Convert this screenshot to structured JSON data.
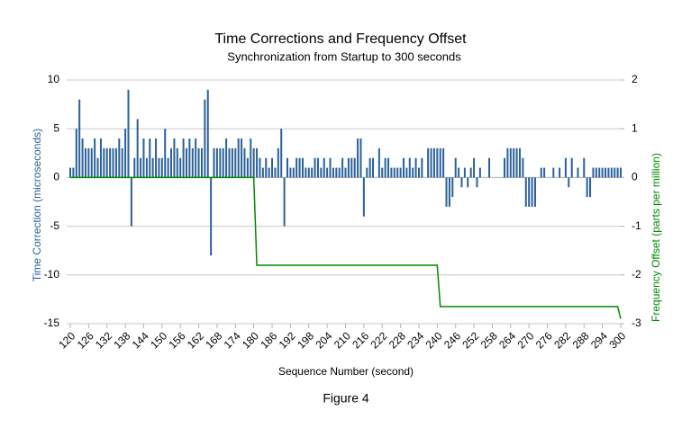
{
  "chart_data": {
    "type": "bar",
    "title": "Time Corrections and Frequency Offset",
    "subtitle": "Synchronization from Startup to 300 seconds",
    "x_label": "Sequence Number (second)",
    "y_label": "Time Correction (microseconds)",
    "y2_label": "Frequency Offset (parts per million)",
    "caption": "Figure 4",
    "x": [
      120,
      121,
      122,
      123,
      124,
      125,
      126,
      127,
      128,
      129,
      130,
      131,
      132,
      133,
      134,
      135,
      136,
      137,
      138,
      139,
      140,
      141,
      142,
      143,
      144,
      145,
      146,
      147,
      148,
      149,
      150,
      151,
      152,
      153,
      154,
      155,
      156,
      157,
      158,
      159,
      160,
      161,
      162,
      163,
      164,
      165,
      166,
      167,
      168,
      169,
      170,
      171,
      172,
      173,
      174,
      175,
      176,
      177,
      178,
      179,
      180,
      181,
      182,
      183,
      184,
      185,
      186,
      187,
      188,
      189,
      190,
      191,
      192,
      193,
      194,
      195,
      196,
      197,
      198,
      199,
      200,
      201,
      202,
      203,
      204,
      205,
      206,
      207,
      208,
      209,
      210,
      211,
      212,
      213,
      214,
      215,
      216,
      217,
      218,
      219,
      220,
      221,
      222,
      223,
      224,
      225,
      226,
      227,
      228,
      229,
      230,
      231,
      232,
      233,
      234,
      235,
      236,
      237,
      238,
      239,
      240,
      241,
      242,
      243,
      244,
      245,
      246,
      247,
      248,
      249,
      250,
      251,
      252,
      253,
      254,
      255,
      256,
      257,
      258,
      259,
      260,
      261,
      262,
      263,
      264,
      265,
      266,
      267,
      268,
      269,
      270,
      271,
      272,
      273,
      274,
      275,
      276,
      277,
      278,
      279,
      280,
      281,
      282,
      283,
      284,
      285,
      286,
      287,
      288,
      289,
      290,
      291,
      292,
      293,
      294,
      295,
      296,
      297,
      298,
      299,
      300
    ],
    "values": [
      1,
      1,
      5,
      8,
      4,
      3,
      3,
      3,
      4,
      2,
      4,
      3,
      3,
      3,
      3,
      3,
      4,
      3,
      5,
      9,
      -5,
      2,
      6,
      2,
      4,
      2,
      4,
      2,
      4,
      2,
      2,
      5,
      2,
      3,
      4,
      3,
      2,
      4,
      3,
      4,
      3,
      4,
      3,
      3,
      8,
      9,
      -8,
      3,
      3,
      3,
      3,
      4,
      3,
      3,
      3,
      4,
      4,
      3,
      2,
      4,
      3,
      3,
      2,
      1,
      2,
      1,
      2,
      1,
      3,
      5,
      -5,
      2,
      1,
      1,
      2,
      2,
      2,
      1,
      1,
      1,
      2,
      2,
      1,
      2,
      1,
      2,
      1,
      1,
      1,
      2,
      1,
      2,
      2,
      2,
      4,
      4,
      -4,
      1,
      2,
      2,
      0,
      3,
      1,
      2,
      2,
      1,
      1,
      1,
      1,
      2,
      1,
      2,
      1,
      2,
      1,
      2,
      0,
      3,
      3,
      3,
      3,
      3,
      3,
      -3,
      -3,
      -2,
      2,
      1,
      -1,
      1,
      -1,
      1,
      2,
      -1,
      1,
      0,
      0,
      2,
      0,
      0,
      0,
      0,
      2,
      3,
      3,
      3,
      3,
      3,
      2,
      -3,
      -3,
      -3,
      -3,
      0,
      1,
      1,
      0,
      0,
      1,
      0,
      1,
      0,
      2,
      -1,
      2,
      0,
      1,
      0,
      2,
      -2,
      -2,
      1,
      1,
      1,
      1,
      1,
      1,
      1,
      1,
      1,
      1
    ],
    "color": "#2a6099",
    "line": {
      "x": [
        120,
        180,
        181,
        240,
        241,
        299,
        300
      ],
      "values": [
        0,
        0,
        -1.8,
        -1.8,
        -2.65,
        -2.65,
        -2.9
      ],
      "color": "#008a00",
      "axis": "y2"
    },
    "xlim": [
      120,
      300
    ],
    "xticks": [
      120,
      126,
      132,
      138,
      144,
      150,
      156,
      162,
      168,
      174,
      180,
      186,
      192,
      198,
      204,
      210,
      216,
      222,
      228,
      234,
      240,
      246,
      252,
      258,
      264,
      270,
      276,
      282,
      288,
      294,
      300
    ],
    "ylim": [
      -15,
      10
    ],
    "yticks": [
      -15,
      -10,
      -5,
      0,
      5,
      10
    ],
    "y2lim": [
      -3,
      2
    ],
    "y2ticks": [
      -3,
      -2,
      -1,
      0,
      1,
      2
    ],
    "grid": true
  }
}
